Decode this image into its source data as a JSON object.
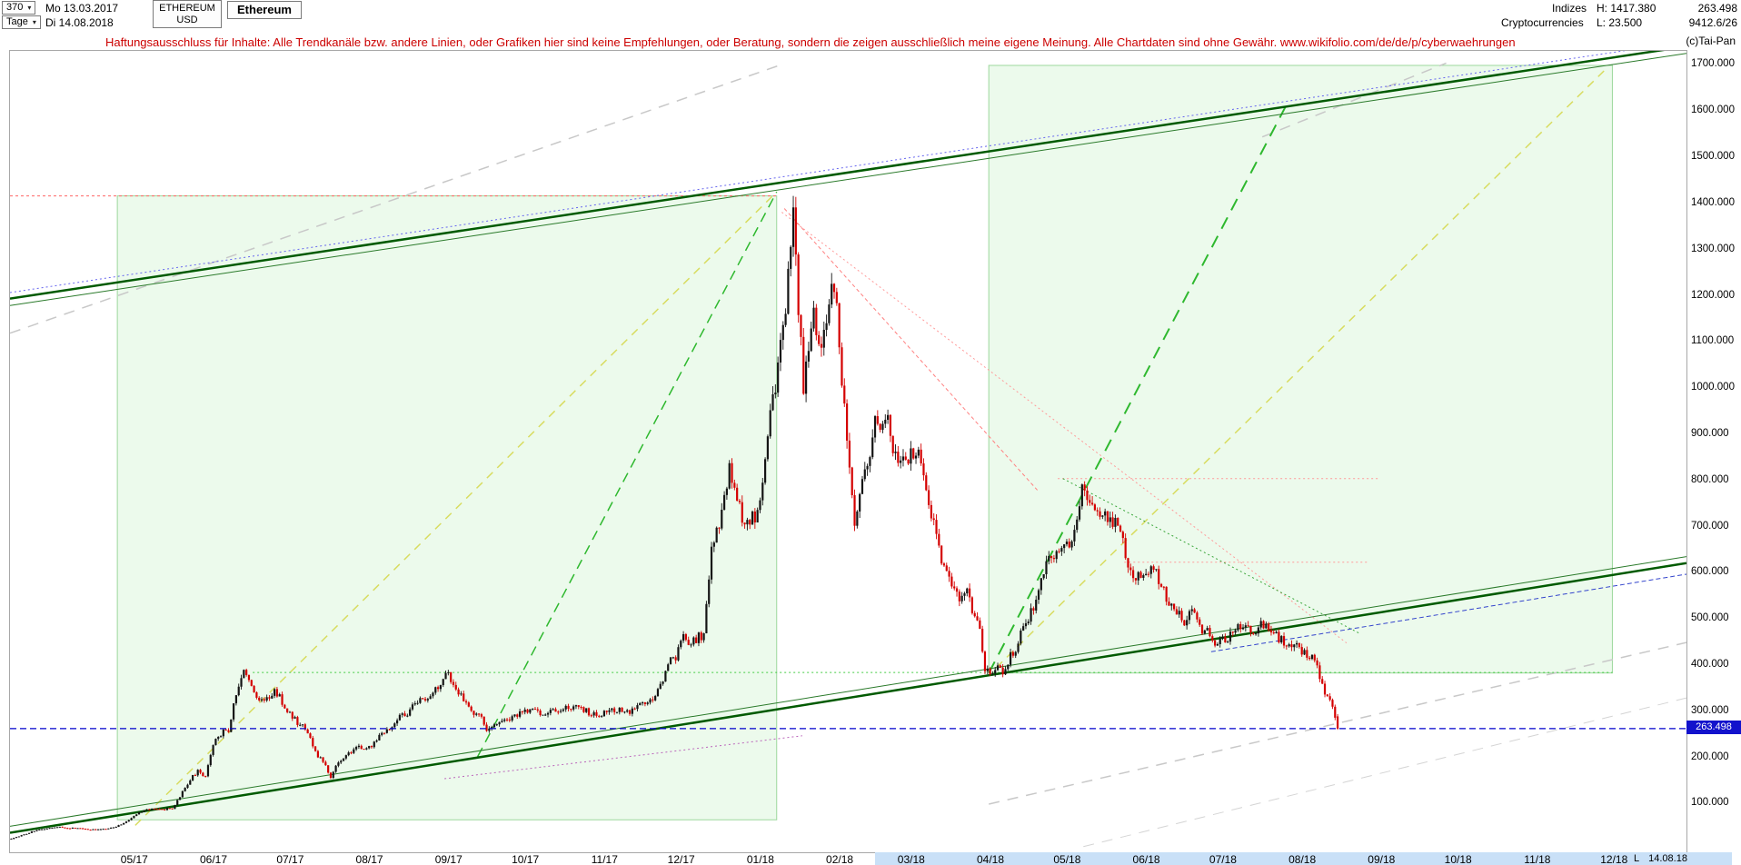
{
  "header": {
    "bars_count": "370",
    "start_date": "Mo 13.03.2017",
    "timeframe": "Tage",
    "end_date": "Di 14.08.2018",
    "symbol": "ETHEREUM",
    "currency": "USD",
    "instrument_name": "Ethereum",
    "category_row1": "Indizes",
    "category_row2": "Cryptocurrencies",
    "high_label": "H: 1417.380",
    "low_label": "L: 23.500",
    "last_price": "263.498",
    "volume_info": "9412.6/26"
  },
  "icons": {
    "dropdown_arrow": "▾"
  },
  "disclaimer": "Haftungsausschluss für Inhalte: Alle Trendkanäle bzw. andere Linien, oder Grafiken hier sind keine Empfehlungen, oder Beratung, sondern die zeigen ausschließlich meine eigene Meinung. Alle Chartdaten sind ohne Gewähr.  www.wikifolio.com/de/de/p/cyberwaehrungen",
  "watermark": "(c)Tai-Pan",
  "axis": {
    "price_badge": "263.498",
    "bottom_marker_flag": "L",
    "bottom_marker_date": "14.08.18",
    "highlight_start_day": 339,
    "y_ticks": [
      {
        "value": 1700,
        "label": "1700.000"
      },
      {
        "value": 1600,
        "label": "1600.000"
      },
      {
        "value": 1500,
        "label": "1500.000"
      },
      {
        "value": 1400,
        "label": "1400.000"
      },
      {
        "value": 1300,
        "label": "1300.000"
      },
      {
        "value": 1200,
        "label": "1200.000"
      },
      {
        "value": 1100,
        "label": "1100.000"
      },
      {
        "value": 1000,
        "label": "1000.000"
      },
      {
        "value": 900,
        "label": "900.000"
      },
      {
        "value": 800,
        "label": "800.000"
      },
      {
        "value": 700,
        "label": "700.000"
      },
      {
        "value": 600,
        "label": "600.000"
      },
      {
        "value": 500,
        "label": "500.000"
      },
      {
        "value": 400,
        "label": "400.000"
      },
      {
        "value": 300,
        "label": "300.000"
      },
      {
        "value": 200,
        "label": "200.000"
      },
      {
        "value": 100,
        "label": "100.000"
      }
    ],
    "x_ticks": [
      {
        "day": 49,
        "label": "05/17",
        "highlight": false
      },
      {
        "day": 80,
        "label": "06/17",
        "highlight": false
      },
      {
        "day": 110,
        "label": "07/17",
        "highlight": false
      },
      {
        "day": 141,
        "label": "08/17",
        "highlight": false
      },
      {
        "day": 172,
        "label": "09/17",
        "highlight": false
      },
      {
        "day": 202,
        "label": "10/17",
        "highlight": false
      },
      {
        "day": 233,
        "label": "11/17",
        "highlight": false
      },
      {
        "day": 263,
        "label": "12/17",
        "highlight": false
      },
      {
        "day": 294,
        "label": "01/18",
        "highlight": false
      },
      {
        "day": 325,
        "label": "02/18",
        "highlight": false
      },
      {
        "day": 353,
        "label": "03/18",
        "highlight": true
      },
      {
        "day": 384,
        "label": "04/18",
        "highlight": true
      },
      {
        "day": 414,
        "label": "05/18",
        "highlight": true
      },
      {
        "day": 445,
        "label": "06/18",
        "highlight": true
      },
      {
        "day": 475,
        "label": "07/18",
        "highlight": true
      },
      {
        "day": 506,
        "label": "08/18",
        "highlight": true
      },
      {
        "day": 537,
        "label": "09/18",
        "highlight": true
      },
      {
        "day": 567,
        "label": "10/18",
        "highlight": true
      },
      {
        "day": 598,
        "label": "11/18",
        "highlight": true
      },
      {
        "day": 628,
        "label": "12/18",
        "highlight": true
      }
    ]
  },
  "chart_data": {
    "type": "candlestick",
    "symbol": "ETHEREUM/USD",
    "timeframe": "Tage",
    "ylim": [
      0,
      1750
    ],
    "x_days_total": 656,
    "last_day": 519,
    "high_day": 306,
    "low_day": 1,
    "period_high": 1417.38,
    "period_low": 23.5,
    "last_close": 263.498,
    "up_color": "#141414",
    "down_color": "#d40000",
    "channel_fill": "#dff6df",
    "channel_stroke": "#9cd89c",
    "anchors": [
      [
        0,
        25
      ],
      [
        4,
        32
      ],
      [
        10,
        44
      ],
      [
        19,
        50
      ],
      [
        26,
        47
      ],
      [
        33,
        44
      ],
      [
        40,
        49
      ],
      [
        45,
        62
      ],
      [
        49,
        78
      ],
      [
        53,
        90
      ],
      [
        57,
        88
      ],
      [
        63,
        90
      ],
      [
        67,
        125
      ],
      [
        70,
        155
      ],
      [
        73,
        172
      ],
      [
        76,
        160
      ],
      [
        79,
        228
      ],
      [
        82,
        252
      ],
      [
        85,
        262
      ],
      [
        88,
        338
      ],
      [
        91,
        395
      ],
      [
        93,
        362
      ],
      [
        95,
        345
      ],
      [
        99,
        320
      ],
      [
        103,
        350
      ],
      [
        108,
        300
      ],
      [
        111,
        282
      ],
      [
        114,
        268
      ],
      [
        117,
        240
      ],
      [
        120,
        205
      ],
      [
        123,
        180
      ],
      [
        125,
        158
      ],
      [
        128,
        190
      ],
      [
        131,
        205
      ],
      [
        135,
        225
      ],
      [
        138,
        218
      ],
      [
        141,
        222
      ],
      [
        145,
        255
      ],
      [
        149,
        268
      ],
      [
        152,
        290
      ],
      [
        155,
        296
      ],
      [
        158,
        318
      ],
      [
        162,
        330
      ],
      [
        166,
        345
      ],
      [
        171,
        385
      ],
      [
        174,
        350
      ],
      [
        177,
        330
      ],
      [
        180,
        302
      ],
      [
        184,
        292
      ],
      [
        186,
        258
      ],
      [
        189,
        270
      ],
      [
        194,
        284
      ],
      [
        199,
        295
      ],
      [
        202,
        302
      ],
      [
        207,
        296
      ],
      [
        212,
        302
      ],
      [
        217,
        315
      ],
      [
        222,
        305
      ],
      [
        227,
        298
      ],
      [
        232,
        297
      ],
      [
        237,
        305
      ],
      [
        242,
        302
      ],
      [
        247,
        315
      ],
      [
        252,
        335
      ],
      [
        255,
        360
      ],
      [
        257,
        402
      ],
      [
        260,
        420
      ],
      [
        262,
        465
      ],
      [
        265,
        440
      ],
      [
        268,
        458
      ],
      [
        271,
        470
      ],
      [
        274,
        650
      ],
      [
        277,
        700
      ],
      [
        281,
        820
      ],
      [
        284,
        765
      ],
      [
        287,
        700
      ],
      [
        290,
        720
      ],
      [
        293,
        742
      ],
      [
        296,
        890
      ],
      [
        300,
        1050
      ],
      [
        303,
        1180
      ],
      [
        306,
        1380
      ],
      [
        308,
        1170
      ],
      [
        310,
        1000
      ],
      [
        312,
        1080
      ],
      [
        314,
        1150
      ],
      [
        317,
        1080
      ],
      [
        321,
        1200
      ],
      [
        323,
        1160
      ],
      [
        325,
        1030
      ],
      [
        327,
        880
      ],
      [
        330,
        700
      ],
      [
        333,
        810
      ],
      [
        336,
        860
      ],
      [
        338,
        920
      ],
      [
        342,
        940
      ],
      [
        345,
        880
      ],
      [
        349,
        840
      ],
      [
        353,
        855
      ],
      [
        356,
        850
      ],
      [
        359,
        750
      ],
      [
        362,
        690
      ],
      [
        365,
        610
      ],
      [
        368,
        580
      ],
      [
        371,
        545
      ],
      [
        374,
        560
      ],
      [
        376,
        520
      ],
      [
        379,
        470
      ],
      [
        381,
        392
      ],
      [
        384,
        380
      ],
      [
        386,
        395
      ],
      [
        388,
        380
      ],
      [
        391,
        420
      ],
      [
        394,
        450
      ],
      [
        397,
        500
      ],
      [
        400,
        520
      ],
      [
        403,
        585
      ],
      [
        407,
        640
      ],
      [
        410,
        650
      ],
      [
        414,
        670
      ],
      [
        417,
        710
      ],
      [
        419,
        790
      ],
      [
        421,
        755
      ],
      [
        424,
        740
      ],
      [
        426,
        730
      ],
      [
        429,
        710
      ],
      [
        433,
        700
      ],
      [
        436,
        640
      ],
      [
        438,
        600
      ],
      [
        440,
        580
      ],
      [
        443,
        610
      ],
      [
        447,
        615
      ],
      [
        450,
        570
      ],
      [
        454,
        530
      ],
      [
        457,
        510
      ],
      [
        459,
        490
      ],
      [
        462,
        515
      ],
      [
        465,
        485
      ],
      [
        468,
        470
      ],
      [
        471,
        450
      ],
      [
        475,
        455
      ],
      [
        478,
        470
      ],
      [
        482,
        490
      ],
      [
        485,
        475
      ],
      [
        488,
        480
      ],
      [
        491,
        495
      ],
      [
        494,
        470
      ],
      [
        498,
        450
      ],
      [
        501,
        445
      ],
      [
        505,
        433
      ],
      [
        508,
        420
      ],
      [
        510,
        410
      ],
      [
        512,
        380
      ],
      [
        513,
        355
      ],
      [
        515,
        335
      ],
      [
        516,
        320
      ],
      [
        517,
        305
      ],
      [
        518,
        290
      ],
      [
        519,
        265
      ]
    ],
    "overlays": {
      "channels": [
        {
          "name": "left-trend-channel",
          "day_start": 42,
          "day_end": 300,
          "price_bottom": 66,
          "price_top": 1417.38
        },
        {
          "name": "right-trend-channel",
          "day_start": 383,
          "day_end": 627,
          "price_bottom": 384,
          "price_top": 1700
        }
      ],
      "lines": [
        {
          "name": "gray-dashed-upper-left",
          "d1": 0,
          "p1": 1120,
          "d2": 301,
          "p2": 1700,
          "color": "#c8c8c8",
          "width": 1.5,
          "dash": "12,9"
        },
        {
          "name": "gray-dashed-upper-right",
          "d1": 490,
          "p1": 1545,
          "d2": 562,
          "p2": 1705,
          "color": "#c8c8c8",
          "width": 1.5,
          "dash": "12,9"
        },
        {
          "name": "gray-dashed-lower-1",
          "d1": 383,
          "p1": 100,
          "d2": 656,
          "p2": 450,
          "color": "#c8c8c8",
          "width": 1.5,
          "dash": "12,9"
        },
        {
          "name": "gray-dashed-lower-2",
          "d1": 420,
          "p1": 8,
          "d2": 656,
          "p2": 330,
          "color": "#d4d4d4",
          "width": 1,
          "dash": "12,9"
        },
        {
          "name": "yellow-dashed-left",
          "d1": 49,
          "p1": 54,
          "d2": 300,
          "p2": 1426,
          "color": "#d8dc60",
          "width": 1.5,
          "dash": "9,7"
        },
        {
          "name": "yellow-dashed-right",
          "d1": 386,
          "p1": 396,
          "d2": 625,
          "p2": 1695,
          "color": "#d8dc60",
          "width": 1.5,
          "dash": "9,7"
        },
        {
          "name": "red-dotted-high-level",
          "d1": 0,
          "p1": 1417.38,
          "d2": 300,
          "p2": 1417.38,
          "color": "#ff6666",
          "width": 1,
          "dash": "3,3"
        },
        {
          "name": "pink-dotted-descending-long",
          "d1": 302,
          "p1": 1382,
          "d2": 523,
          "p2": 449,
          "color": "#ff9999",
          "width": 1,
          "dash": "2,3"
        },
        {
          "name": "pink-dashed-descending-steep",
          "d1": 303,
          "p1": 1390,
          "d2": 402,
          "p2": 780,
          "color": "#ff8080",
          "width": 1,
          "dash": "4,3"
        },
        {
          "name": "pink-dotted-level-805",
          "d1": 410,
          "p1": 805,
          "d2": 536,
          "p2": 805,
          "color": "#ff9999",
          "width": 1,
          "dash": "2,3"
        },
        {
          "name": "pink-dotted-level-624",
          "d1": 436,
          "p1": 624,
          "d2": 531,
          "p2": 624,
          "color": "#ff9999",
          "width": 1,
          "dash": "2,3"
        },
        {
          "name": "green-dotted-level-385",
          "d1": 95,
          "p1": 385,
          "d2": 627,
          "p2": 385,
          "color": "#44cc44",
          "width": 1,
          "dash": "2,3"
        },
        {
          "name": "green-dotted-descending",
          "d1": 412,
          "p1": 805,
          "d2": 528,
          "p2": 470,
          "color": "#3aa63a",
          "width": 1,
          "dash": "2,3"
        },
        {
          "name": "green-dashed-steep-left",
          "d1": 183,
          "p1": 203,
          "d2": 300,
          "p2": 1426,
          "color": "#2eb82e",
          "width": 1.5,
          "dash": "11,7"
        },
        {
          "name": "green-dashed-steep-right",
          "d1": 383,
          "p1": 384,
          "d2": 500,
          "p2": 1620,
          "color": "#2eb82e",
          "width": 2,
          "dash": "14,9"
        },
        {
          "name": "magenta-dotted-lower-left",
          "d1": 170,
          "p1": 155,
          "d2": 310,
          "p2": 248,
          "color": "#bb66bb",
          "width": 1,
          "dash": "2,3"
        },
        {
          "name": "blue-dotted-upper-parallel",
          "d1": 0,
          "p1": 1208,
          "d2": 656,
          "p2": 1752,
          "color": "#6666ee",
          "width": 1,
          "dash": "2,3"
        },
        {
          "name": "blue-dashed-lower-right",
          "d1": 470,
          "p1": 430,
          "d2": 656,
          "p2": 598,
          "color": "#3344cc",
          "width": 1,
          "dash": "5,3"
        },
        {
          "name": "upper-trendline-thin",
          "d1": 0,
          "p1": 1180,
          "d2": 656,
          "p2": 1726,
          "color": "#2a7a2a",
          "width": 1,
          "dash": ""
        },
        {
          "name": "upper-trendline-main",
          "d1": 0,
          "p1": 1195,
          "d2": 656,
          "p2": 1741,
          "color": "#005a00",
          "width": 2.5,
          "dash": ""
        },
        {
          "name": "lower-trendline-thin",
          "d1": 0,
          "p1": 52,
          "d2": 656,
          "p2": 636,
          "color": "#2a7a2a",
          "width": 1,
          "dash": ""
        },
        {
          "name": "lower-trendline-main",
          "d1": 0,
          "p1": 38,
          "d2": 656,
          "p2": 622,
          "color": "#005a00",
          "width": 2.5,
          "dash": ""
        },
        {
          "name": "last-price-line",
          "d1": 0,
          "p1": 263.498,
          "d2": 656,
          "p2": 263.498,
          "color": "#0000cc",
          "width": 1.2,
          "dash": "7,4",
          "layer": "above"
        }
      ]
    }
  }
}
